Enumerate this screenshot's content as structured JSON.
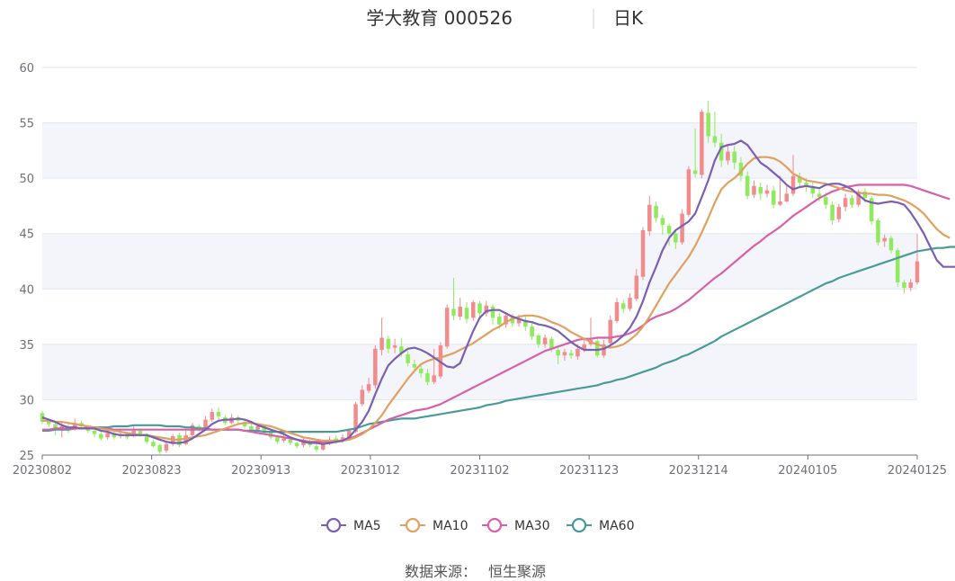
{
  "chart_data": {
    "type": "candlestick",
    "title": "学大教育 000526",
    "period": "日K",
    "ylim": [
      25,
      60
    ],
    "y_ticks": [
      25,
      30,
      35,
      40,
      45,
      50,
      55,
      60
    ],
    "x_ticks": [
      "20230802",
      "20230823",
      "20230913",
      "20231012",
      "20231102",
      "20231123",
      "20231214",
      "20240105",
      "20240125"
    ],
    "up_color": "#f28b8b",
    "down_color": "#8fea5c",
    "legend": [
      {
        "name": "MA5",
        "color": "#7a5fb3"
      },
      {
        "name": "MA10",
        "color": "#e0a060"
      },
      {
        "name": "MA30",
        "color": "#d860a8"
      },
      {
        "name": "MA60",
        "color": "#4a9a9a"
      }
    ],
    "candles": [
      [
        28.8,
        28.0,
        29.0,
        27.8
      ],
      [
        28.0,
        27.8,
        28.2,
        27.5
      ],
      [
        27.8,
        27.3,
        27.9,
        26.8
      ],
      [
        27.2,
        27.6,
        28.0,
        26.6
      ],
      [
        27.5,
        27.2,
        27.8,
        27.0
      ],
      [
        27.3,
        27.9,
        28.3,
        27.2
      ],
      [
        27.9,
        27.6,
        28.1,
        27.3
      ],
      [
        27.5,
        27.2,
        27.7,
        27.0
      ],
      [
        27.2,
        26.9,
        27.5,
        26.6
      ],
      [
        26.9,
        26.5,
        27.1,
        26.3
      ],
      [
        26.6,
        27.0,
        27.3,
        26.4
      ],
      [
        27.0,
        26.6,
        27.2,
        26.4
      ],
      [
        26.7,
        26.9,
        27.4,
        26.5
      ],
      [
        26.9,
        26.6,
        27.1,
        26.4
      ],
      [
        26.7,
        27.2,
        27.6,
        26.6
      ],
      [
        27.2,
        26.9,
        27.4,
        26.6
      ],
      [
        26.9,
        26.2,
        27.0,
        26.0
      ],
      [
        26.2,
        25.8,
        26.4,
        25.7
      ],
      [
        25.9,
        25.3,
        26.0,
        25.1
      ],
      [
        25.4,
        26.0,
        26.3,
        25.2
      ],
      [
        26.0,
        26.7,
        26.9,
        25.8
      ],
      [
        26.8,
        25.9,
        27.0,
        25.7
      ],
      [
        26.0,
        26.8,
        27.2,
        25.9
      ],
      [
        26.8,
        27.7,
        27.9,
        26.7
      ],
      [
        27.6,
        27.3,
        27.8,
        27.1
      ],
      [
        27.3,
        28.2,
        28.5,
        27.2
      ],
      [
        28.2,
        28.9,
        29.2,
        28.0
      ],
      [
        28.9,
        28.5,
        29.3,
        28.2
      ],
      [
        28.4,
        27.9,
        28.6,
        27.7
      ],
      [
        27.9,
        28.4,
        28.7,
        27.8
      ],
      [
        28.4,
        28.1,
        28.6,
        27.9
      ],
      [
        28.0,
        27.6,
        28.2,
        27.4
      ],
      [
        27.6,
        27.3,
        27.8,
        27.1
      ],
      [
        27.3,
        27.6,
        27.9,
        27.0
      ],
      [
        27.6,
        27.2,
        27.8,
        27.0
      ],
      [
        27.1,
        26.6,
        27.2,
        26.4
      ],
      [
        26.6,
        26.2,
        26.8,
        26.0
      ],
      [
        26.3,
        26.5,
        26.9,
        26.1
      ],
      [
        26.4,
        26.1,
        26.6,
        25.9
      ],
      [
        26.1,
        25.8,
        26.2,
        25.6
      ],
      [
        25.9,
        26.3,
        26.5,
        25.7
      ],
      [
        26.2,
        25.9,
        26.4,
        25.7
      ],
      [
        25.8,
        25.5,
        26.0,
        25.3
      ],
      [
        25.5,
        26.0,
        26.3,
        25.4
      ],
      [
        26.0,
        26.4,
        26.7,
        25.9
      ],
      [
        26.5,
        26.2,
        26.8,
        26.0
      ],
      [
        26.3,
        26.6,
        26.9,
        26.1
      ],
      [
        26.6,
        27.2,
        27.4,
        26.5
      ],
      [
        27.1,
        29.6,
        29.8,
        27.0
      ],
      [
        29.6,
        30.9,
        31.3,
        29.4
      ],
      [
        30.8,
        31.4,
        32.0,
        30.6
      ],
      [
        31.3,
        34.6,
        34.9,
        31.0
      ],
      [
        34.5,
        35.6,
        37.4,
        34.0
      ],
      [
        35.5,
        34.6,
        35.8,
        34.2
      ],
      [
        34.7,
        34.9,
        35.5,
        34.2
      ],
      [
        34.8,
        34.2,
        35.6,
        33.9
      ],
      [
        34.1,
        33.3,
        34.4,
        33.0
      ],
      [
        33.2,
        32.9,
        33.6,
        32.5
      ],
      [
        32.8,
        32.4,
        33.1,
        32.0
      ],
      [
        32.4,
        31.6,
        32.8,
        31.3
      ],
      [
        31.6,
        32.2,
        34.6,
        31.4
      ],
      [
        32.1,
        34.9,
        35.2,
        31.9
      ],
      [
        34.8,
        38.3,
        38.6,
        34.6
      ],
      [
        38.2,
        37.6,
        41.0,
        37.2
      ],
      [
        37.5,
        38.4,
        39.2,
        37.2
      ],
      [
        38.3,
        37.3,
        38.8,
        36.9
      ],
      [
        37.4,
        38.8,
        39.0,
        37.1
      ],
      [
        38.7,
        37.8,
        38.9,
        37.4
      ],
      [
        37.8,
        38.5,
        38.9,
        37.5
      ],
      [
        38.4,
        37.4,
        38.6,
        36.8
      ],
      [
        37.5,
        36.8,
        37.9,
        36.4
      ],
      [
        36.8,
        37.6,
        37.9,
        36.5
      ],
      [
        37.5,
        36.9,
        37.8,
        36.6
      ],
      [
        36.9,
        37.3,
        37.7,
        36.6
      ],
      [
        37.2,
        36.6,
        37.5,
        36.2
      ],
      [
        36.6,
        35.7,
        36.9,
        35.4
      ],
      [
        35.8,
        35.0,
        36.0,
        34.7
      ],
      [
        35.0,
        35.6,
        35.9,
        34.7
      ],
      [
        35.5,
        34.6,
        35.7,
        34.3
      ],
      [
        34.5,
        34.0,
        34.8,
        33.2
      ],
      [
        34.0,
        34.3,
        34.6,
        33.5
      ],
      [
        34.2,
        34.0,
        34.5,
        33.7
      ],
      [
        33.9,
        34.6,
        35.0,
        33.6
      ],
      [
        34.5,
        35.0,
        35.6,
        34.3
      ],
      [
        35.0,
        35.4,
        37.4,
        34.8
      ],
      [
        35.3,
        34.0,
        35.6,
        33.8
      ],
      [
        34.0,
        35.0,
        35.4,
        33.8
      ],
      [
        35.1,
        37.2,
        37.6,
        34.9
      ],
      [
        37.1,
        38.8,
        39.2,
        36.9
      ],
      [
        38.7,
        38.2,
        39.0,
        37.8
      ],
      [
        38.2,
        39.2,
        39.6,
        38.0
      ],
      [
        39.1,
        41.2,
        41.8,
        38.9
      ],
      [
        41.1,
        45.3,
        45.6,
        40.8
      ],
      [
        45.2,
        47.6,
        48.4,
        44.8
      ],
      [
        47.5,
        46.4,
        47.9,
        46.0
      ],
      [
        46.4,
        45.8,
        46.7,
        44.9
      ],
      [
        45.7,
        45.0,
        45.9,
        43.9
      ],
      [
        45.0,
        44.2,
        45.3,
        43.6
      ],
      [
        44.2,
        46.8,
        47.2,
        44.0
      ],
      [
        46.7,
        50.8,
        51.1,
        46.5
      ],
      [
        50.7,
        50.4,
        54.5,
        50.1
      ],
      [
        50.3,
        56.0,
        56.2,
        50.0
      ],
      [
        55.9,
        53.8,
        57.0,
        53.2
      ],
      [
        53.8,
        53.2,
        56.0,
        52.8
      ],
      [
        53.2,
        51.6,
        54.0,
        51.0
      ],
      [
        51.6,
        52.4,
        53.0,
        51.2
      ],
      [
        52.4,
        51.4,
        52.9,
        50.8
      ],
      [
        51.4,
        50.2,
        51.9,
        49.7
      ],
      [
        50.2,
        48.4,
        50.6,
        48.1
      ],
      [
        48.5,
        49.3,
        49.8,
        48.2
      ],
      [
        49.2,
        48.6,
        49.6,
        48.0
      ],
      [
        48.6,
        48.9,
        49.4,
        48.3
      ],
      [
        48.9,
        47.6,
        49.3,
        47.3
      ],
      [
        47.6,
        47.9,
        50.2,
        47.5
      ],
      [
        47.9,
        48.6,
        49.3,
        47.8
      ],
      [
        48.6,
        50.2,
        52.1,
        48.4
      ],
      [
        50.1,
        49.6,
        50.5,
        49.1
      ],
      [
        49.6,
        49.2,
        50.0,
        48.8
      ],
      [
        49.2,
        48.6,
        49.6,
        48.2
      ],
      [
        48.6,
        48.3,
        49.0,
        47.9
      ],
      [
        48.3,
        47.6,
        48.7,
        47.2
      ],
      [
        47.6,
        46.2,
        47.9,
        45.8
      ],
      [
        46.3,
        47.4,
        47.7,
        46.0
      ],
      [
        47.4,
        48.2,
        48.6,
        47.0
      ],
      [
        48.2,
        47.6,
        48.5,
        47.3
      ],
      [
        47.6,
        48.8,
        49.0,
        47.4
      ],
      [
        48.8,
        48.2,
        49.1,
        47.8
      ],
      [
        48.2,
        46.1,
        48.4,
        45.8
      ],
      [
        46.2,
        44.2,
        46.4,
        43.9
      ],
      [
        44.3,
        44.6,
        44.9,
        43.8
      ],
      [
        44.6,
        43.5,
        44.8,
        43.2
      ],
      [
        43.5,
        40.6,
        43.7,
        40.2
      ],
      [
        40.6,
        40.1,
        40.8,
        39.6
      ],
      [
        40.1,
        40.6,
        40.9,
        39.8
      ],
      [
        40.6,
        42.5,
        45.0,
        40.4
      ]
    ],
    "ma5": [
      28.4,
      28.2,
      28.0,
      27.7,
      27.5,
      27.5,
      27.4,
      27.4,
      27.4,
      27.2,
      27.1,
      26.9,
      26.8,
      26.8,
      26.8,
      26.8,
      26.8,
      26.6,
      26.4,
      26.2,
      26.1,
      26.1,
      26.2,
      26.5,
      26.9,
      27.3,
      27.8,
      28.1,
      28.2,
      28.2,
      28.3,
      28.2,
      28.0,
      27.7,
      27.5,
      27.3,
      27.1,
      26.9,
      26.6,
      26.4,
      26.2,
      26.1,
      26.1,
      26.0,
      26.1,
      26.2,
      26.3,
      26.6,
      27.3,
      28.0,
      29.0,
      30.5,
      31.9,
      33.1,
      33.7,
      34.2,
      34.6,
      34.7,
      34.5,
      34.2,
      33.8,
      33.4,
      33.0,
      32.9,
      33.3,
      34.8,
      36.2,
      37.4,
      38.0,
      38.1,
      38.1,
      37.8,
      37.5,
      37.3,
      37.1,
      37.0,
      36.8,
      36.7,
      36.5,
      36.2,
      35.7,
      35.2,
      34.8,
      34.5,
      34.5,
      34.5,
      34.6,
      34.9,
      35.3,
      35.8,
      36.5,
      37.5,
      38.9,
      40.6,
      42.0,
      43.5,
      44.6,
      45.3,
      45.7,
      46.1,
      46.8,
      48.3,
      49.8,
      51.6,
      52.8,
      53.0,
      53.1,
      53.4,
      53.0,
      52.2,
      51.4,
      51.0,
      50.5,
      50.0,
      49.4,
      49.0,
      49.2,
      49.3,
      49.2,
      49.1,
      49.4,
      49.5,
      49.5,
      49.3,
      49.0,
      48.5,
      48.0,
      47.8,
      47.7,
      47.8,
      47.9,
      47.8,
      47.6,
      46.9,
      46.0,
      45.0,
      43.8,
      42.6,
      42.0,
      42.0,
      42.0
    ],
    "ma10": [
      28.1,
      28.1,
      28.0,
      28.0,
      27.9,
      27.8,
      27.7,
      27.6,
      27.5,
      27.4,
      27.3,
      27.2,
      27.1,
      27.0,
      26.9,
      26.8,
      26.8,
      26.7,
      26.6,
      26.5,
      26.4,
      26.4,
      26.5,
      26.6,
      26.7,
      26.8,
      27.0,
      27.2,
      27.4,
      27.6,
      27.8,
      27.9,
      27.9,
      27.8,
      27.7,
      27.6,
      27.4,
      27.2,
      27.0,
      26.8,
      26.6,
      26.5,
      26.4,
      26.3,
      26.3,
      26.3,
      26.3,
      26.4,
      26.6,
      26.9,
      27.3,
      27.9,
      28.6,
      29.5,
      30.3,
      31.1,
      31.9,
      32.6,
      33.2,
      33.5,
      33.7,
      33.8,
      34.0,
      34.2,
      34.5,
      34.8,
      35.1,
      35.5,
      35.9,
      36.3,
      36.6,
      37.0,
      37.3,
      37.5,
      37.6,
      37.6,
      37.5,
      37.3,
      37.0,
      36.8,
      36.5,
      36.1,
      35.8,
      35.5,
      35.2,
      35.0,
      34.8,
      34.7,
      34.8,
      35.0,
      35.4,
      35.9,
      36.6,
      37.5,
      38.5,
      39.5,
      40.5,
      41.3,
      42.1,
      42.9,
      43.9,
      45.1,
      46.4,
      47.8,
      49.0,
      49.6,
      50.0,
      50.6,
      51.3,
      51.8,
      51.9,
      51.9,
      51.8,
      51.5,
      51.0,
      50.4,
      50.1,
      49.8,
      49.7,
      49.6,
      49.5,
      49.3,
      49.1,
      48.9,
      48.8,
      48.7,
      48.6,
      48.6,
      48.5,
      48.5,
      48.4,
      48.2,
      48.0,
      47.7,
      47.3,
      46.8,
      46.1,
      45.4,
      44.9,
      44.6
    ],
    "ma30": [
      27.3,
      27.3,
      27.4,
      27.4,
      27.4,
      27.4,
      27.4,
      27.4,
      27.4,
      27.4,
      27.4,
      27.3,
      27.3,
      27.3,
      27.3,
      27.3,
      27.3,
      27.3,
      27.3,
      27.3,
      27.3,
      27.3,
      27.3,
      27.3,
      27.3,
      27.3,
      27.3,
      27.3,
      27.3,
      27.3,
      27.3,
      27.2,
      27.1,
      27.0,
      26.9,
      26.8,
      26.7,
      26.6,
      26.5,
      26.4,
      26.3,
      26.2,
      26.2,
      26.2,
      26.2,
      26.2,
      26.3,
      26.5,
      26.7,
      27.0,
      27.3,
      27.6,
      27.9,
      28.2,
      28.4,
      28.6,
      28.8,
      29.0,
      29.1,
      29.2,
      29.4,
      29.6,
      29.9,
      30.2,
      30.5,
      30.8,
      31.1,
      31.4,
      31.7,
      32.0,
      32.3,
      32.6,
      32.9,
      33.2,
      33.5,
      33.8,
      34.1,
      34.4,
      34.6,
      34.8,
      35.0,
      35.2,
      35.4,
      35.5,
      35.5,
      35.6,
      35.6,
      35.6,
      35.7,
      35.8,
      36.0,
      36.3,
      36.7,
      37.2,
      37.5,
      37.7,
      37.9,
      38.2,
      38.6,
      39.0,
      39.5,
      40.0,
      40.5,
      41.0,
      41.4,
      41.9,
      42.4,
      42.9,
      43.4,
      43.9,
      44.3,
      44.8,
      45.2,
      45.6,
      46.1,
      46.6,
      47.0,
      47.4,
      47.8,
      48.2,
      48.5,
      48.8,
      49.0,
      49.2,
      49.3,
      49.4,
      49.4,
      49.4,
      49.4,
      49.4,
      49.4,
      49.4,
      49.4,
      49.3,
      49.1,
      48.9,
      48.7,
      48.5,
      48.3,
      48.1
    ],
    "ma60": [
      27.2,
      27.2,
      27.3,
      27.3,
      27.3,
      27.4,
      27.4,
      27.5,
      27.5,
      27.5,
      27.5,
      27.6,
      27.6,
      27.6,
      27.7,
      27.7,
      27.7,
      27.7,
      27.7,
      27.6,
      27.6,
      27.6,
      27.5,
      27.5,
      27.4,
      27.4,
      27.3,
      27.3,
      27.3,
      27.3,
      27.3,
      27.2,
      27.2,
      27.2,
      27.1,
      27.1,
      27.1,
      27.1,
      27.1,
      27.1,
      27.1,
      27.1,
      27.1,
      27.1,
      27.1,
      27.1,
      27.2,
      27.3,
      27.4,
      27.6,
      27.8,
      27.9,
      28.0,
      28.1,
      28.2,
      28.3,
      28.3,
      28.3,
      28.4,
      28.5,
      28.6,
      28.7,
      28.8,
      28.9,
      29.0,
      29.1,
      29.2,
      29.3,
      29.5,
      29.6,
      29.7,
      29.9,
      30.0,
      30.1,
      30.2,
      30.3,
      30.4,
      30.5,
      30.6,
      30.7,
      30.8,
      30.9,
      31.0,
      31.1,
      31.2,
      31.3,
      31.5,
      31.6,
      31.8,
      31.9,
      32.1,
      32.3,
      32.5,
      32.7,
      32.9,
      33.2,
      33.4,
      33.6,
      33.9,
      34.1,
      34.4,
      34.7,
      35.0,
      35.3,
      35.7,
      36.0,
      36.3,
      36.6,
      36.9,
      37.2,
      37.5,
      37.8,
      38.1,
      38.4,
      38.7,
      39.0,
      39.3,
      39.6,
      39.9,
      40.2,
      40.5,
      40.7,
      41.0,
      41.2,
      41.4,
      41.6,
      41.8,
      42.0,
      42.2,
      42.4,
      42.6,
      42.8,
      43.0,
      43.2,
      43.4,
      43.5,
      43.6,
      43.7,
      43.7,
      43.8,
      43.8,
      43.9
    ]
  },
  "source": {
    "label": "数据来源：",
    "value": "恒生聚源"
  }
}
